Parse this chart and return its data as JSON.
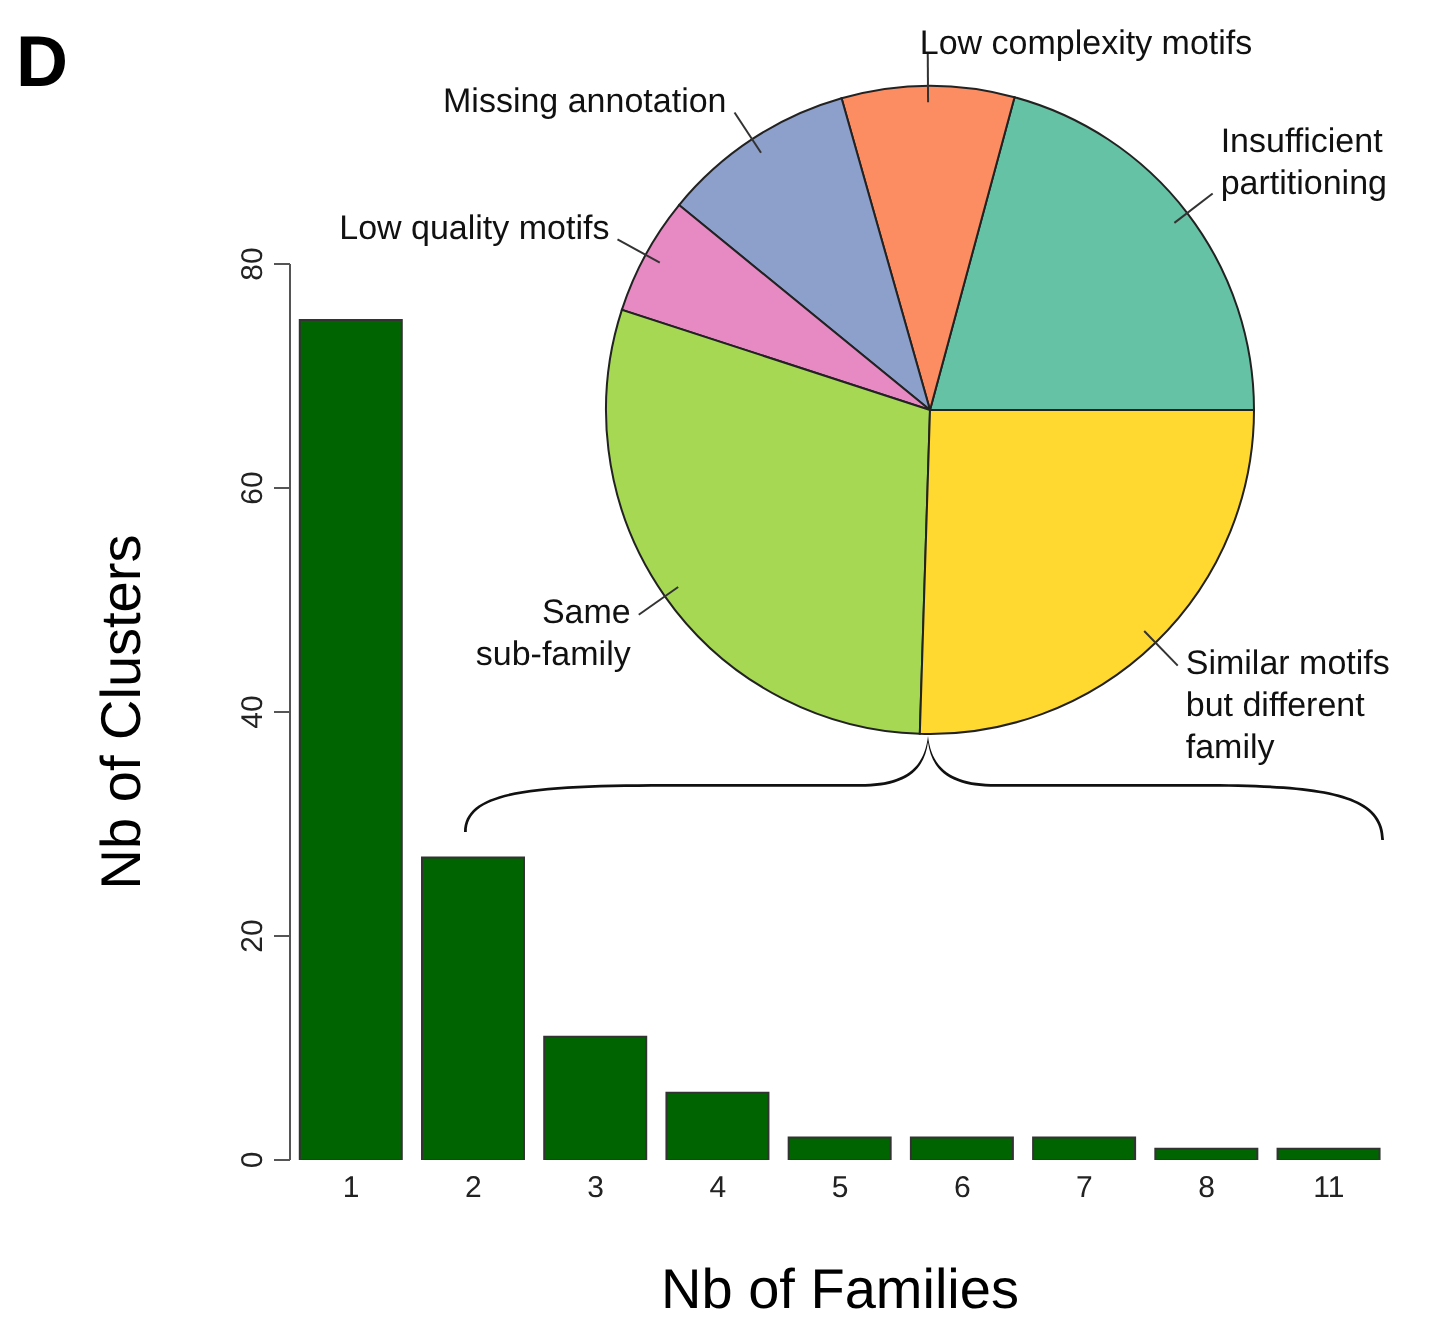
{
  "chart_data": [
    {
      "type": "bar",
      "title": "D",
      "xlabel": "Nb of Families",
      "ylabel": "Nb of Clusters",
      "categories": [
        "1",
        "2",
        "3",
        "4",
        "5",
        "6",
        "7",
        "8",
        "11"
      ],
      "values": [
        75,
        27,
        11,
        6,
        2,
        2,
        2,
        1,
        1
      ],
      "color": "#006400",
      "ylim": [
        0,
        80
      ],
      "yticks": [
        0,
        20,
        40,
        60,
        80
      ],
      "grid": false,
      "legend": false
    },
    {
      "type": "pie",
      "categories": [
        "Insufficient partitioning",
        "Low complexity motifs",
        "Missing annotation",
        "Low quality motifs",
        "Same sub-family",
        "Similar motifs but different family"
      ],
      "values": [
        20.8,
        8.6,
        9.7,
        5.9,
        29.5,
        25.5
      ],
      "colors": [
        "#66c2a5",
        "#fc8d62",
        "#8da0cb",
        "#e78ac3",
        "#a6d854",
        "#ffd92f"
      ],
      "legend": false
    }
  ]
}
